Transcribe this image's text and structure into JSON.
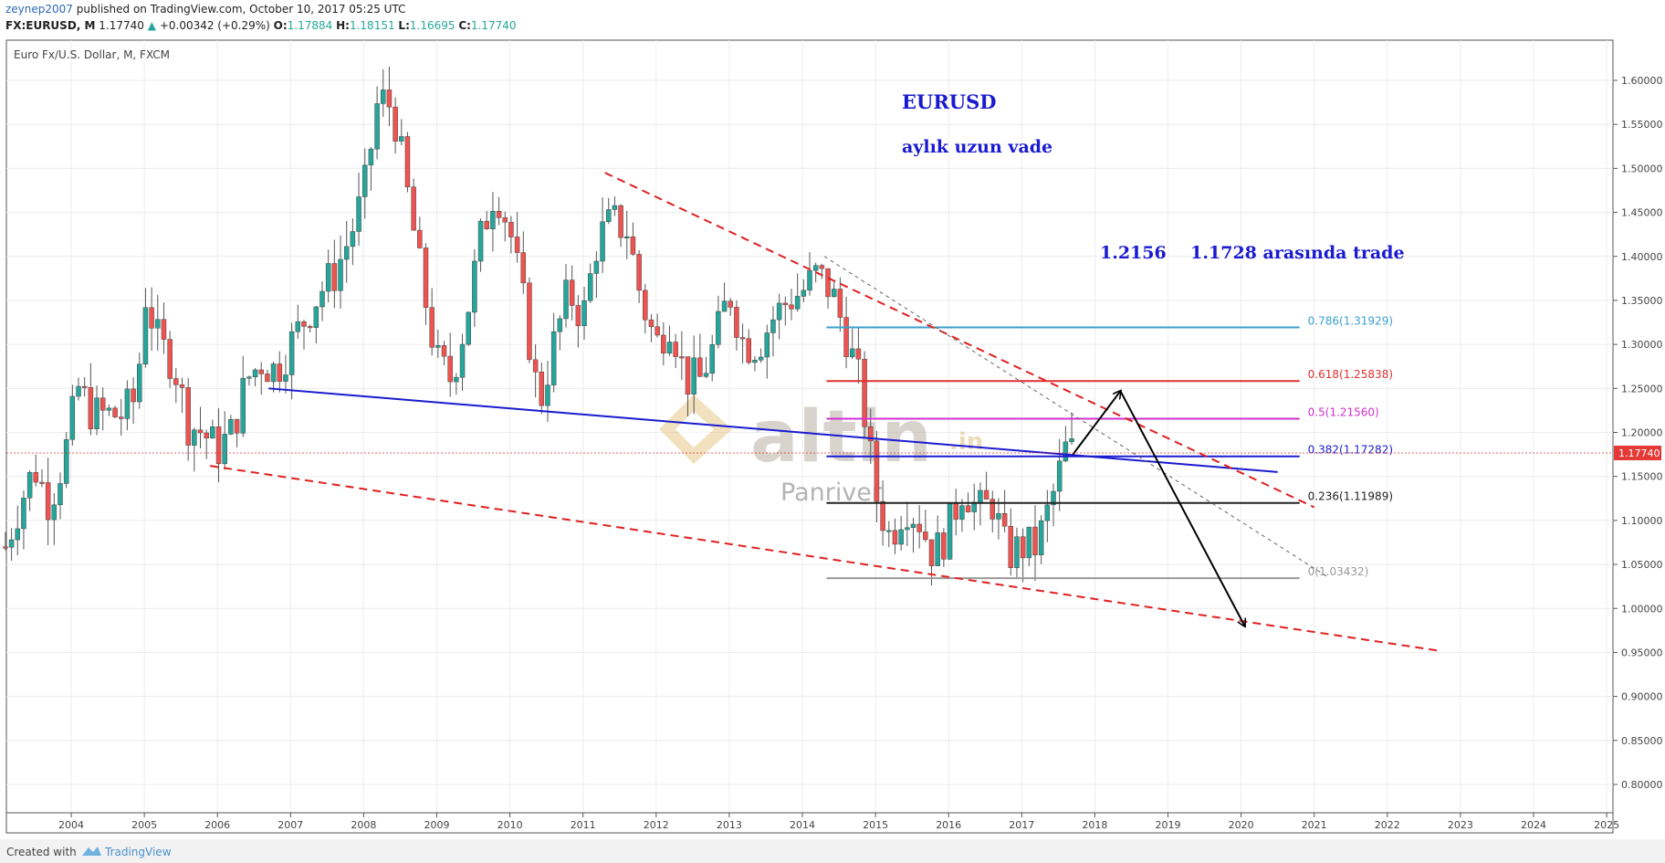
{
  "header": {
    "user": "zeynep2007",
    "published_text": "published on TradingView.com, October 10, 2017 05:25 UTC",
    "symbol": "FX:EURUSD, M",
    "last": "1.17740",
    "change": "+0.00342 (+0.29%)",
    "o_label": "O:",
    "o_value": "1.17884",
    "h_label": "H:",
    "h_value": "1.18151",
    "l_label": "L:",
    "l_value": "1.16695",
    "c_label": "C:",
    "c_value": "1.17740"
  },
  "chart_title": "Euro Fx/U.S. Dollar, M, FXCM",
  "annotations": {
    "title": "EURUSD",
    "subtitle": "aylık uzun vade",
    "trade_range": "1.2156    1.1728 arasında trade",
    "watermark_brand": "altin",
    "watermark_suffix": ".in",
    "watermark_sub": "Panriver"
  },
  "price_label": "1.17740",
  "footer": {
    "created": "Created with",
    "brand": "TradingView"
  },
  "colors": {
    "up": "#26a69a",
    "down": "#ef5350",
    "trendline": "#1a1ad0",
    "channel": "#e02020",
    "fib_0786": "#3ba0d0",
    "fib_0618": "#e03030",
    "fib_05": "#d030d0",
    "fib_0382": "#1a1ad0",
    "fib_0236": "#222222",
    "fib_0": "#999999"
  },
  "chart_data": {
    "type": "candlestick",
    "title": "Euro Fx/U.S. Dollar, M, FXCM",
    "symbol": "EURUSD",
    "interval": "M",
    "ylim": [
      0.775,
      1.62
    ],
    "yticks": [
      "1.60000",
      "1.55000",
      "1.50000",
      "1.45000",
      "1.40000",
      "1.35000",
      "1.30000",
      "1.25000",
      "1.20000",
      "1.15000",
      "1.10000",
      "1.05000",
      "1.00000",
      "0.95000",
      "0.90000",
      "0.85000",
      "0.80000"
    ],
    "xticks": [
      "2004",
      "2005",
      "2006",
      "2007",
      "2008",
      "2009",
      "2010",
      "2011",
      "2012",
      "2013",
      "2014",
      "2015",
      "2016",
      "2017",
      "2018",
      "2019",
      "2020",
      "2021",
      "2022",
      "2023",
      "2024",
      "2025"
    ],
    "monthly_close": [
      [
        2003.1,
        1.07
      ],
      [
        2003.3,
        1.12
      ],
      [
        2003.5,
        1.16
      ],
      [
        2003.7,
        1.12
      ],
      [
        2003.9,
        1.17
      ],
      [
        2004.1,
        1.25
      ],
      [
        2004.3,
        1.22
      ],
      [
        2004.5,
        1.22
      ],
      [
        2004.7,
        1.22
      ],
      [
        2004.9,
        1.24
      ],
      [
        2005.0,
        1.36
      ],
      [
        2005.2,
        1.3
      ],
      [
        2005.4,
        1.28
      ],
      [
        2005.6,
        1.21
      ],
      [
        2005.8,
        1.2
      ],
      [
        2006.0,
        1.18
      ],
      [
        2006.2,
        1.2
      ],
      [
        2006.4,
        1.26
      ],
      [
        2006.6,
        1.28
      ],
      [
        2006.8,
        1.27
      ],
      [
        2007.0,
        1.3
      ],
      [
        2007.2,
        1.33
      ],
      [
        2007.4,
        1.36
      ],
      [
        2007.6,
        1.38
      ],
      [
        2007.8,
        1.42
      ],
      [
        2008.0,
        1.47
      ],
      [
        2008.2,
        1.58
      ],
      [
        2008.4,
        1.57
      ],
      [
        2008.6,
        1.47
      ],
      [
        2008.8,
        1.37
      ],
      [
        2009.0,
        1.28
      ],
      [
        2009.2,
        1.26
      ],
      [
        2009.4,
        1.33
      ],
      [
        2009.6,
        1.42
      ],
      [
        2009.8,
        1.48
      ],
      [
        2010.0,
        1.43
      ],
      [
        2010.2,
        1.34
      ],
      [
        2010.4,
        1.23
      ],
      [
        2010.6,
        1.3
      ],
      [
        2010.8,
        1.36
      ],
      [
        2011.0,
        1.33
      ],
      [
        2011.2,
        1.42
      ],
      [
        2011.4,
        1.44
      ],
      [
        2011.6,
        1.43
      ],
      [
        2011.8,
        1.35
      ],
      [
        2012.0,
        1.3
      ],
      [
        2012.2,
        1.33
      ],
      [
        2012.4,
        1.26
      ],
      [
        2012.6,
        1.26
      ],
      [
        2012.8,
        1.3
      ],
      [
        2013.0,
        1.36
      ],
      [
        2013.2,
        1.3
      ],
      [
        2013.4,
        1.3
      ],
      [
        2013.6,
        1.33
      ],
      [
        2013.8,
        1.35
      ],
      [
        2014.0,
        1.36
      ],
      [
        2014.2,
        1.38
      ],
      [
        2014.4,
        1.36
      ],
      [
        2014.6,
        1.31
      ],
      [
        2014.8,
        1.25
      ],
      [
        2015.0,
        1.13
      ],
      [
        2015.2,
        1.08
      ],
      [
        2015.4,
        1.12
      ],
      [
        2015.6,
        1.1
      ],
      [
        2015.8,
        1.06
      ],
      [
        2016.0,
        1.09
      ],
      [
        2016.2,
        1.14
      ],
      [
        2016.4,
        1.11
      ],
      [
        2016.6,
        1.12
      ],
      [
        2016.8,
        1.06
      ],
      [
        2017.0,
        1.07
      ],
      [
        2017.2,
        1.07
      ],
      [
        2017.4,
        1.12
      ],
      [
        2017.6,
        1.18
      ],
      [
        2017.75,
        1.1774
      ]
    ],
    "fibonacci": [
      {
        "label": "0.786(1.31929)",
        "price": 1.31929
      },
      {
        "label": "0.618(1.25838)",
        "price": 1.25838
      },
      {
        "label": "0.5(1.21560)",
        "price": 1.2156
      },
      {
        "label": "0.382(1.17282)",
        "price": 1.17282
      },
      {
        "label": "0.236(1.11989)",
        "price": 1.11989
      },
      {
        "label": "0(1.03432)",
        "price": 1.03432
      }
    ],
    "drawings": {
      "support_trendline": [
        [
          2006.7,
          1.25
        ],
        [
          2020.5,
          1.155
        ]
      ],
      "channel_top": [
        [
          2011.3,
          1.495
        ],
        [
          2021.0,
          1.115
        ]
      ],
      "channel_bottom": [
        [
          2005.9,
          1.162
        ],
        [
          2022.7,
          0.952
        ]
      ],
      "thin_dashed": [
        [
          2014.3,
          1.4
        ],
        [
          2021.2,
          1.035
        ]
      ],
      "arrow_up": [
        [
          2017.7,
          1.175
        ],
        [
          2018.35,
          1.247
        ]
      ],
      "arrow_down": [
        [
          2018.35,
          1.247
        ],
        [
          2020.05,
          0.98
        ]
      ]
    }
  }
}
